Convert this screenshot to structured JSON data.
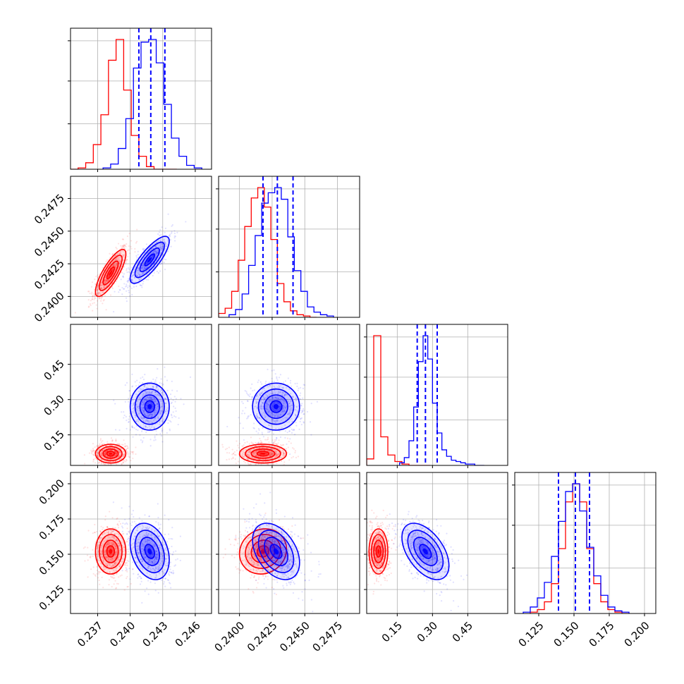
{
  "colors": {
    "series_a": "#ff0000",
    "series_b": "#0000ff",
    "grid": "#b0b0b0",
    "frame": "#000000"
  },
  "chart_data": {
    "type": "corner",
    "title": "",
    "legend": "none",
    "grid": true,
    "parameters": [
      {
        "index": 0,
        "range": [
          0.2345,
          0.2475
        ],
        "ticks": [
          0.237,
          0.24,
          0.243,
          0.246
        ],
        "tick_labels": [
          "0.237",
          "0.240",
          "0.243",
          "0.246"
        ]
      },
      {
        "index": 1,
        "range": [
          0.2384,
          0.2492
        ],
        "ticks": [
          0.24,
          0.2425,
          0.245,
          0.2475
        ],
        "tick_labels": [
          "0.2400",
          "0.2425",
          "0.2450",
          "0.2475"
        ]
      },
      {
        "index": 2,
        "range": [
          0.02,
          0.62
        ],
        "ticks": [
          0.15,
          0.3,
          0.45
        ],
        "tick_labels": [
          "0.15",
          "0.30",
          "0.45"
        ]
      },
      {
        "index": 3,
        "range": [
          0.108,
          0.208
        ],
        "ticks": [
          0.125,
          0.15,
          0.175,
          0.2
        ],
        "tick_labels": [
          "0.125",
          "0.150",
          "0.175",
          "0.200"
        ]
      }
    ],
    "series": [
      {
        "color": "#ff0000",
        "mean": [
          0.2382,
          0.2418,
          0.07,
          0.152
        ],
        "sd": [
          0.0007,
          0.0009,
          0.02,
          0.008
        ],
        "correlations": {
          "0-1": 0.8,
          "0-3": 0.0,
          "1-3": 0.1,
          "2-3": 0.0,
          "0-2": 0.0,
          "1-2": 0.0
        },
        "histograms": [
          {
            "edges": [
              0.2345,
              0.2352,
              0.2359,
              0.2366,
              0.2373,
              0.238,
              0.2387,
              0.2394,
              0.2401,
              0.2408,
              0.2415,
              0.2422,
              0.2429,
              0.2436,
              0.2443
            ],
            "counts": [
              0.0,
              0.01,
              0.05,
              0.19,
              0.42,
              0.84,
              1.0,
              0.61,
              0.26,
              0.1,
              0.02,
              0.0,
              0.0,
              0.0
            ]
          },
          {
            "edges": [
              0.2384,
              0.2389,
              0.2394,
              0.2399,
              0.2404,
              0.2409,
              0.2414,
              0.2419,
              0.2424,
              0.2429,
              0.2434,
              0.2439,
              0.2444,
              0.2449,
              0.2454,
              0.2459
            ],
            "counts": [
              0.03,
              0.07,
              0.2,
              0.44,
              0.7,
              0.92,
              1.0,
              0.85,
              0.6,
              0.26,
              0.12,
              0.05,
              0.02,
              0.01,
              0.0
            ]
          },
          {
            "edges": [
              0.02,
              0.05,
              0.08,
              0.11,
              0.14,
              0.17,
              0.2,
              0.23,
              0.26,
              0.29
            ],
            "counts": [
              0.05,
              1.0,
              0.22,
              0.08,
              0.03,
              0.01,
              0.0,
              0.0,
              0.0
            ]
          },
          {
            "edges": [
              0.119,
              0.124,
              0.129,
              0.134,
              0.139,
              0.144,
              0.149,
              0.154,
              0.159,
              0.164,
              0.169,
              0.174,
              0.179,
              0.184,
              0.189
            ],
            "counts": [
              0.01,
              0.03,
              0.09,
              0.23,
              0.5,
              0.86,
              1.0,
              0.86,
              0.5,
              0.23,
              0.09,
              0.03,
              0.01,
              0.0
            ]
          }
        ]
      },
      {
        "color": "#0000ff",
        "mean": [
          0.2418,
          0.2428,
          0.27,
          0.152
        ],
        "sd": [
          0.0009,
          0.0009,
          0.05,
          0.01
        ],
        "correlations": {
          "0-1": 0.8,
          "0-3": -0.3,
          "1-3": -0.4,
          "2-3": -0.5,
          "0-2": 0.0,
          "1-2": 0.0
        },
        "quantiles": [
          [
            0.2408,
            0.2419,
            0.2432
          ],
          [
            0.2418,
            0.2429,
            0.2441
          ],
          [
            0.235,
            0.27,
            0.32
          ],
          [
            0.139,
            0.151,
            0.161
          ]
        ],
        "histograms": [
          {
            "edges": [
              0.2375,
              0.2382,
              0.2389,
              0.2396,
              0.2403,
              0.241,
              0.2417,
              0.2424,
              0.2431,
              0.2438,
              0.2445,
              0.2452,
              0.2459,
              0.2466
            ],
            "counts": [
              0.01,
              0.04,
              0.16,
              0.39,
              0.78,
              0.98,
              1.0,
              0.82,
              0.5,
              0.24,
              0.1,
              0.03,
              0.01
            ]
          },
          {
            "edges": [
              0.2392,
              0.2397,
              0.2402,
              0.2407,
              0.2412,
              0.2417,
              0.2422,
              0.2427,
              0.2432,
              0.2437,
              0.2442,
              0.2447,
              0.2452,
              0.2457,
              0.2462,
              0.2467,
              0.2472
            ],
            "counts": [
              0.02,
              0.06,
              0.18,
              0.4,
              0.63,
              0.88,
              0.96,
              1.0,
              0.91,
              0.62,
              0.36,
              0.2,
              0.08,
              0.04,
              0.02,
              0.01
            ]
          },
          {
            "edges": [
              0.16,
              0.18,
              0.2,
              0.22,
              0.24,
              0.26,
              0.28,
              0.3,
              0.32,
              0.34,
              0.36,
              0.38,
              0.4,
              0.42,
              0.44,
              0.46,
              0.48,
              0.5,
              0.52
            ],
            "counts": [
              0.02,
              0.06,
              0.19,
              0.45,
              0.8,
              1.0,
              0.82,
              0.48,
              0.25,
              0.12,
              0.07,
              0.04,
              0.03,
              0.02,
              0.01,
              0.01,
              0.0,
              0.0
            ]
          },
          {
            "edges": [
              0.114,
              0.119,
              0.124,
              0.129,
              0.134,
              0.139,
              0.144,
              0.149,
              0.154,
              0.159,
              0.164,
              0.169,
              0.174,
              0.179,
              0.184,
              0.189
            ],
            "counts": [
              0.01,
              0.05,
              0.12,
              0.24,
              0.44,
              0.71,
              0.94,
              1.0,
              0.79,
              0.51,
              0.29,
              0.14,
              0.05,
              0.02,
              0.01
            ]
          }
        ]
      }
    ]
  }
}
